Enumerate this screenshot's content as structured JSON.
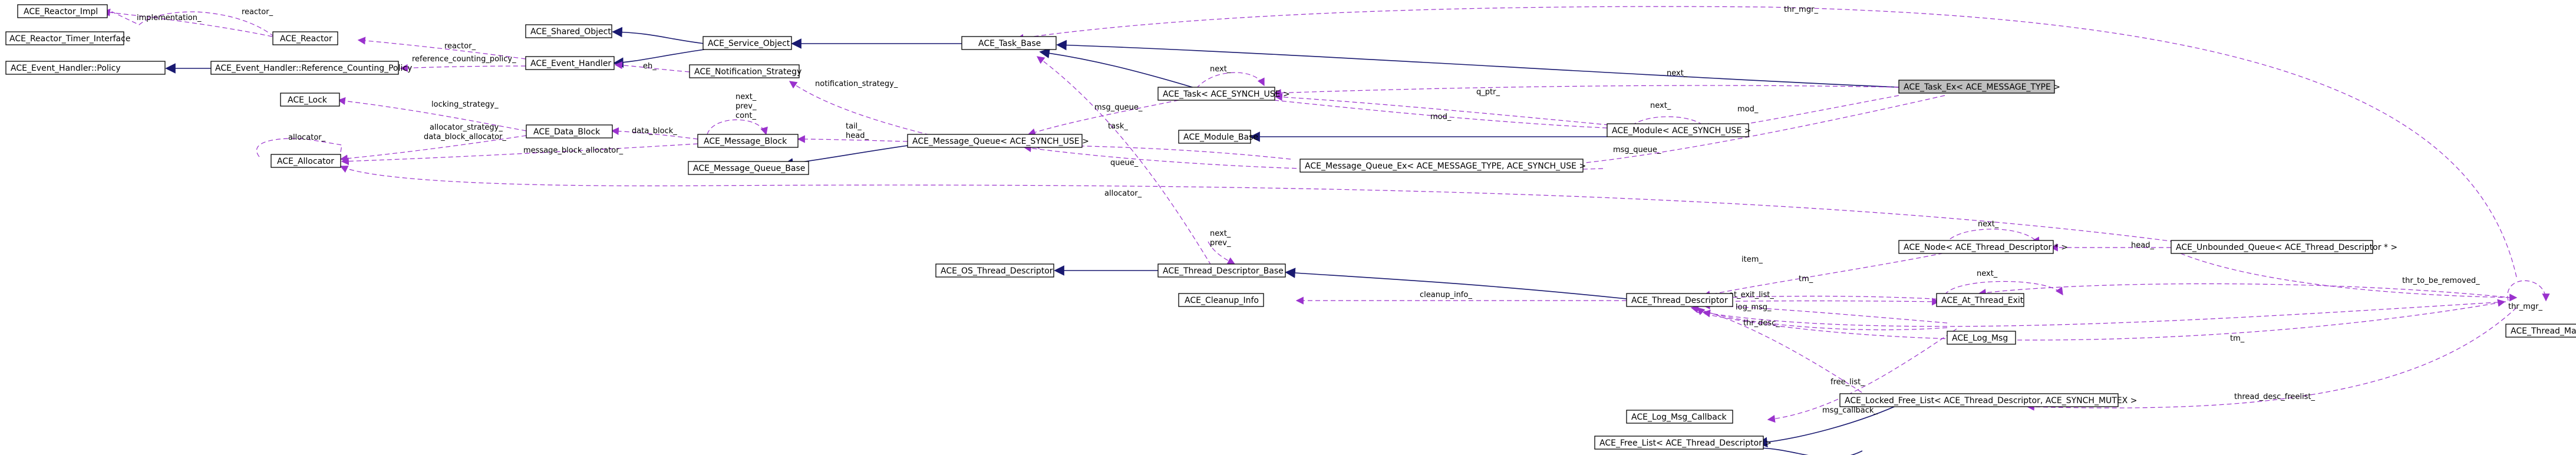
{
  "diagram": {
    "title": "",
    "nodes": {
      "reactor_impl": "ACE_Reactor_Impl",
      "reactor_timer_interface": "ACE_Reactor_Timer_Interface",
      "reactor": "ACE_Reactor",
      "event_handler_policy": "ACE_Event_Handler::Policy",
      "event_handler_ref_policy": "ACE_Event_Handler::Reference_Counting_Policy",
      "shared_object": "ACE_Shared_Object",
      "service_object": "ACE_Service_Object",
      "event_handler": "ACE_Event_Handler",
      "notification_strategy": "ACE_Notification_Strategy",
      "task_base": "ACE_Task_Base",
      "task_ex": "ACE_Task_Ex< ACE_MESSAGE_TYPE >",
      "task": "ACE_Task< ACE_SYNCH_USE >",
      "lock": "ACE_Lock",
      "data_block": "ACE_Data_Block",
      "message_block": "ACE_Message_Block",
      "allocator": "ACE_Allocator",
      "message_queue": "ACE_Message_Queue< ACE_SYNCH_USE >",
      "module": "ACE_Module< ACE_SYNCH_USE >",
      "module_base": "ACE_Module_Base",
      "message_queue_base": "ACE_Message_Queue_Base",
      "message_queue_ex": "ACE_Message_Queue_Ex< ACE_MESSAGE_TYPE, ACE_SYNCH_USE >",
      "os_thread_descriptor": "ACE_OS_Thread_Descriptor",
      "thread_descriptor_base": "ACE_Thread_Descriptor_Base",
      "cleanup_info": "ACE_Cleanup_Info",
      "thread_descriptor": "ACE_Thread_Descriptor",
      "node_thread_descriptor": "ACE_Node< ACE_Thread_Descriptor * >",
      "unbounded_queue": "ACE_Unbounded_Queue< ACE_Thread_Descriptor * >",
      "at_thread_exit": "ACE_At_Thread_Exit",
      "log_msg": "ACE_Log_Msg",
      "thread_manager": "ACE_Thread_Manager",
      "log_msg_callback": "ACE_Log_Msg_Callback",
      "locked_free_list": "ACE_Locked_Free_List< ACE_Thread_Descriptor, ACE_SYNCH_MUTEX >",
      "free_list": "ACE_Free_List< ACE_Thread_Descriptor >"
    },
    "edge_labels": {
      "implementation": "implementation_",
      "reactor_self": "reactor_",
      "reactor": "reactor_",
      "reference_counting_policy": "reference_counting_policy_",
      "eh": "eh_",
      "thr_mgr_top": "thr_mgr_",
      "next_task": "next_",
      "next_task_ex": "next_",
      "mod_ex": "mod_",
      "next_module": "next_",
      "q_ptr": "q_ptr_",
      "mod_task": "mod_",
      "notification_strategy": "notification_strategy_",
      "msg_queue_task": "msg_queue_",
      "task_reverse": "task_",
      "tail_head": "tail_\nhead_",
      "msg_queue_ex": "msg_queue_",
      "locking_strategy": "locking_strategy_",
      "data_block": "data_block_",
      "next_prev_cont": "next_\nprev_\ncont_",
      "allocator_self": "allocator_",
      "allocator_strategy": "allocator_strategy_\ndata_block_allocator_",
      "message_block_allocator": "message_block_allocator_",
      "queue": "queue_",
      "allocator_long": "allocator_",
      "next_prev_tdb": "next_\nprev_",
      "next_node": "next_",
      "head": "head_",
      "item": "item_",
      "tm": "tm_",
      "at_exit_list": "at_exit_list_",
      "next_exit": "next_",
      "cleanup_info": "cleanup_info_",
      "log_msg": "log_msg_",
      "thr_desc": "thr_desc_",
      "tm_bottom": "tm_",
      "thr_to_be_removed": "thr_to_be_removed_",
      "thr_mgr_self": "thr_mgr_",
      "free_list": "free_list_",
      "msg_callback": "msg_callback_",
      "thread_desc_freelist": "thread_desc_freelist_"
    },
    "colors": {
      "inheritance": "#191970",
      "usage": "#9a32cd",
      "template": "#ffa500",
      "focus_fill": "#bfbfbf"
    }
  }
}
